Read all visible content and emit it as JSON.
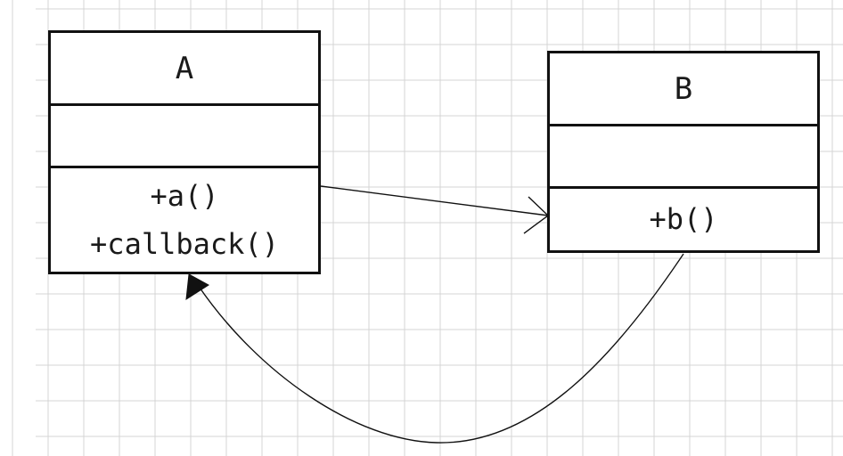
{
  "diagram": {
    "classes": [
      {
        "id": "A",
        "name": "A",
        "attributes": [],
        "operations": [
          "+a()",
          "+callback()"
        ]
      },
      {
        "id": "B",
        "name": "B",
        "attributes": [],
        "operations": [
          "+b()"
        ]
      }
    ],
    "relations": [
      {
        "from": "A",
        "to": "B",
        "type": "association",
        "arrowhead": "open"
      },
      {
        "from": "B",
        "to": "A",
        "type": "callback",
        "arrowhead": "filled"
      }
    ],
    "colors": {
      "grid": "#d4d4d4",
      "border": "#111111",
      "connector": "#111111",
      "background": "#ffffff"
    }
  }
}
